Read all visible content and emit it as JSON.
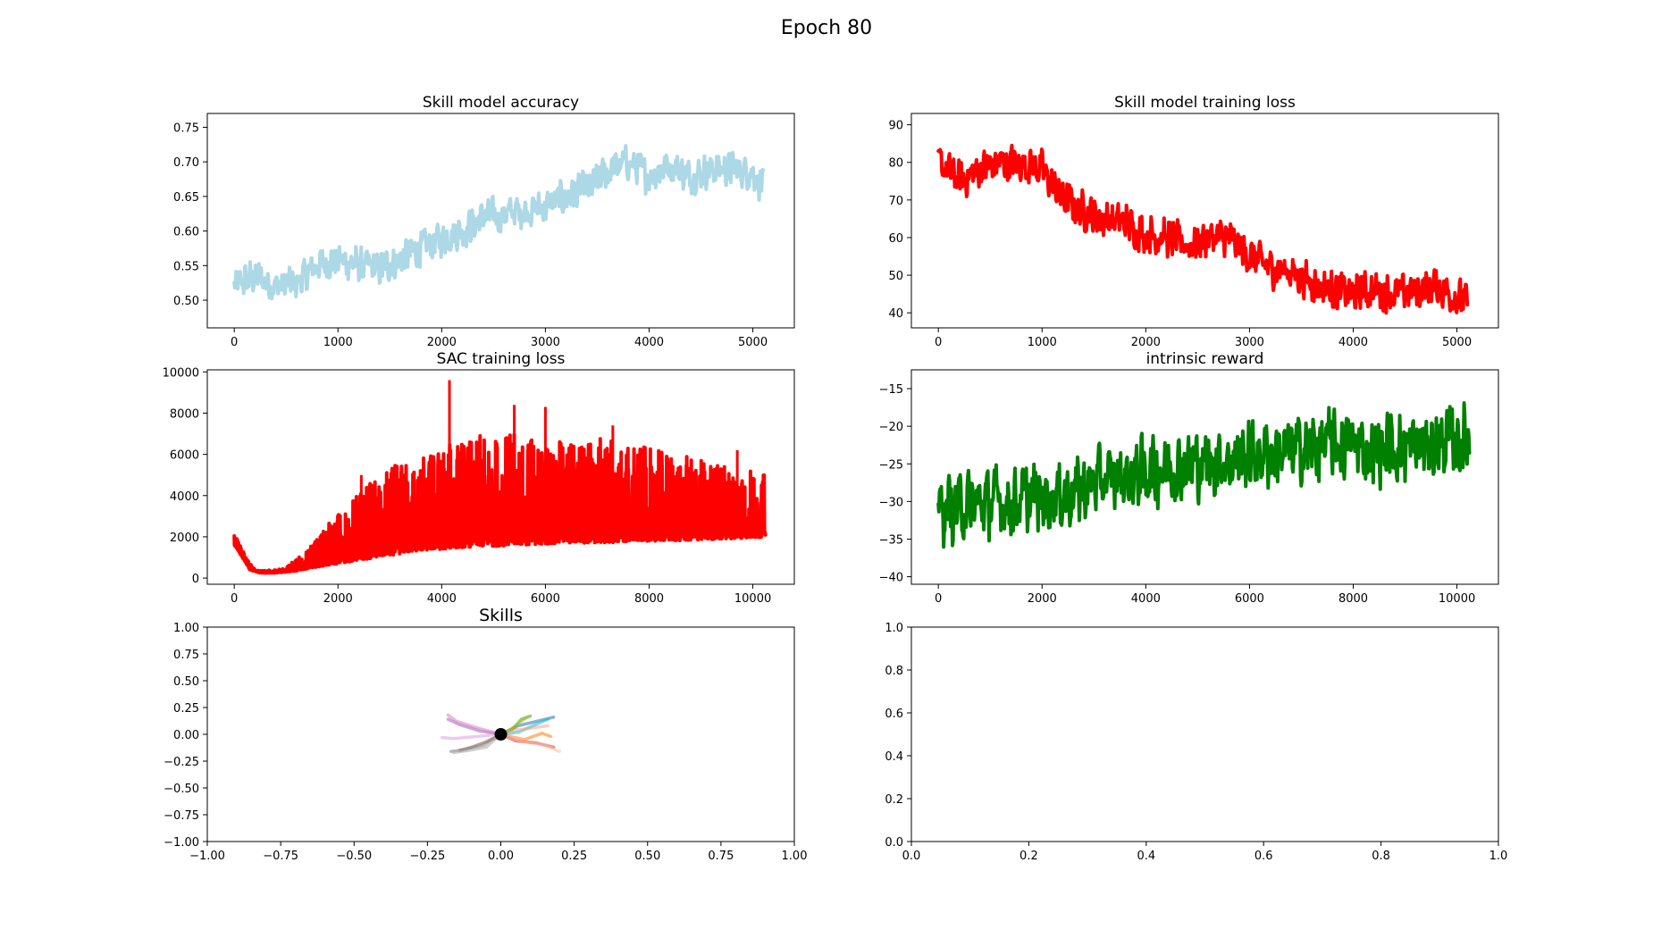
{
  "figure": {
    "suptitle": "Epoch 80"
  },
  "chart_data": [
    {
      "id": "acc",
      "type": "line",
      "title": "Skill model accuracy",
      "xlabel": "",
      "ylabel": "",
      "xlim": [
        -260,
        5400
      ],
      "ylim": [
        0.46,
        0.77
      ],
      "xticks": [
        0,
        1000,
        2000,
        3000,
        4000,
        5000
      ],
      "yticks": [
        0.5,
        0.55,
        0.6,
        0.65,
        0.7,
        0.75
      ],
      "xtick_labels": [
        "0",
        "1000",
        "2000",
        "3000",
        "4000",
        "5000"
      ],
      "ytick_labels": [
        "0.50",
        "0.55",
        "0.60",
        "0.65",
        "0.70",
        "0.75"
      ],
      "grid": false,
      "series": [
        {
          "color": "#add8e6",
          "x": [
            0,
            200,
            400,
            600,
            800,
            1000,
            1200,
            1400,
            1600,
            1800,
            2000,
            2200,
            2400,
            2600,
            2800,
            3000,
            3200,
            3400,
            3600,
            3800,
            4000,
            4200,
            4400,
            4600,
            4800,
            5000,
            5100
          ],
          "y": [
            0.52,
            0.535,
            0.52,
            0.525,
            0.55,
            0.56,
            0.55,
            0.545,
            0.56,
            0.575,
            0.59,
            0.6,
            0.62,
            0.625,
            0.63,
            0.635,
            0.65,
            0.66,
            0.685,
            0.7,
            0.68,
            0.695,
            0.68,
            0.69,
            0.69,
            0.685,
            0.665
          ],
          "noise": 0.06
        }
      ]
    },
    {
      "id": "loss",
      "type": "line",
      "title": "Skill model training loss",
      "xlabel": "",
      "ylabel": "",
      "xlim": [
        -260,
        5400
      ],
      "ylim": [
        36,
        93
      ],
      "xticks": [
        0,
        1000,
        2000,
        3000,
        4000,
        5000
      ],
      "yticks": [
        40,
        50,
        60,
        70,
        80,
        90
      ],
      "xtick_labels": [
        "0",
        "1000",
        "2000",
        "3000",
        "4000",
        "5000"
      ],
      "ytick_labels": [
        "40",
        "50",
        "60",
        "70",
        "80",
        "90"
      ],
      "grid": false,
      "series": [
        {
          "color": "#ff0000",
          "x": [
            0,
            200,
            400,
            600,
            800,
            1000,
            1200,
            1400,
            1600,
            1800,
            2000,
            2200,
            2400,
            2600,
            2800,
            3000,
            3200,
            3400,
            3600,
            3800,
            4000,
            4200,
            4400,
            4600,
            4800,
            5000,
            5100
          ],
          "y": [
            80,
            75,
            78,
            80,
            80,
            78,
            70,
            67,
            65,
            64,
            61,
            60,
            58,
            60,
            60,
            55,
            52,
            51,
            48,
            46,
            45,
            46,
            45,
            46,
            47,
            44,
            43
          ],
          "noise": 12
        }
      ]
    },
    {
      "id": "sac",
      "type": "line",
      "title": "SAC training loss",
      "xlabel": "",
      "ylabel": "",
      "xlim": [
        -520,
        10800
      ],
      "ylim": [
        -300,
        10100
      ],
      "xticks": [
        0,
        2000,
        4000,
        6000,
        8000,
        10000
      ],
      "yticks": [
        0,
        2000,
        4000,
        6000,
        8000,
        10000
      ],
      "xtick_labels": [
        "0",
        "2000",
        "4000",
        "6000",
        "8000",
        "10000"
      ],
      "ytick_labels": [
        "0",
        "2000",
        "4000",
        "6000",
        "8000",
        "10000"
      ],
      "grid": false,
      "series": [
        {
          "color": "#ff0000",
          "x": [
            0,
            100,
            300,
            500,
            800,
            1000,
            1200,
            1500,
            2000,
            2500,
            3000,
            3500,
            4000,
            4500,
            5000,
            5500,
            6000,
            6500,
            7000,
            7500,
            8000,
            8500,
            9000,
            9500,
            10000,
            10240
          ],
          "lower": [
            1600,
            1200,
            400,
            250,
            250,
            300,
            350,
            500,
            700,
            900,
            1100,
            1300,
            1400,
            1500,
            1550,
            1600,
            1650,
            1700,
            1700,
            1750,
            1800,
            1800,
            1850,
            1900,
            1950,
            2000
          ],
          "upper": [
            2100,
            1800,
            700,
            350,
            400,
            600,
            900,
            1600,
            3200,
            4400,
            5400,
            5800,
            6400,
            6800,
            7000,
            7000,
            6700,
            6700,
            6800,
            6600,
            6300,
            6000,
            5800,
            5500,
            5300,
            5000
          ],
          "spikes": [
            [
              4150,
              9600
            ],
            [
              5400,
              8400
            ],
            [
              6000,
              8300
            ],
            [
              7300,
              7400
            ],
            [
              2450,
              5000
            ],
            [
              9700,
              6200
            ]
          ]
        }
      ]
    },
    {
      "id": "rew",
      "type": "line",
      "title": "intrinsic reward",
      "xlabel": "",
      "ylabel": "",
      "xlim": [
        -520,
        10800
      ],
      "ylim": [
        -41,
        -12.5
      ],
      "xticks": [
        0,
        2000,
        4000,
        6000,
        8000,
        10000
      ],
      "yticks": [
        -40,
        -35,
        -30,
        -25,
        -20,
        -15
      ],
      "xtick_labels": [
        "0",
        "2000",
        "4000",
        "6000",
        "8000",
        "10000"
      ],
      "ytick_labels": [
        "−40",
        "−35",
        "−30",
        "−25",
        "−20",
        "−15"
      ],
      "grid": false,
      "series": [
        {
          "color": "#008000",
          "x": [
            0,
            500,
            1000,
            1500,
            2000,
            2500,
            3000,
            3500,
            4000,
            4500,
            5000,
            5500,
            6000,
            6500,
            7000,
            7500,
            8000,
            8500,
            9000,
            9500,
            10000,
            10240
          ],
          "y": [
            -31,
            -30.5,
            -30,
            -30,
            -29.5,
            -29,
            -27.5,
            -27,
            -26,
            -25.5,
            -25,
            -24.5,
            -24,
            -23.5,
            -23,
            -22.5,
            -22.5,
            -23,
            -23,
            -22.5,
            -22,
            -22
          ],
          "noise": 11
        }
      ]
    },
    {
      "id": "skills",
      "type": "line",
      "title": "Skills",
      "xlabel": "",
      "ylabel": "",
      "xlim": [
        -1,
        1
      ],
      "ylim": [
        -1,
        1
      ],
      "xticks": [
        -1,
        -0.75,
        -0.5,
        -0.25,
        0,
        0.25,
        0.5,
        0.75,
        1
      ],
      "yticks": [
        -1,
        -0.75,
        -0.5,
        -0.25,
        0,
        0.25,
        0.5,
        0.75,
        1
      ],
      "xtick_labels": [
        "−1.00",
        "−0.75",
        "−0.50",
        "−0.25",
        "0.00",
        "0.25",
        "0.50",
        "0.75",
        "1.00"
      ],
      "ytick_labels": [
        "−1.00",
        "−0.75",
        "−0.50",
        "−0.25",
        "0.00",
        "0.25",
        "0.50",
        "0.75",
        "1.00"
      ],
      "grid": false,
      "origin": [
        0,
        0
      ],
      "series": [
        {
          "color": "#1f77b4",
          "x": [
            0,
            0.06,
            0.12,
            0.18
          ],
          "y": [
            0,
            0.08,
            0.12,
            0.16
          ]
        },
        {
          "color": "#ff7f0e",
          "x": [
            0,
            0.08,
            0.14,
            0.17
          ],
          "y": [
            0,
            -0.05,
            0.01,
            -0.02
          ]
        },
        {
          "color": "#2ca02c",
          "x": [
            0,
            0.04,
            0.07,
            0.1
          ],
          "y": [
            0,
            0.05,
            0.14,
            0.17
          ]
        },
        {
          "color": "#d62728",
          "x": [
            0,
            0.05,
            0.12,
            0.18
          ],
          "y": [
            0,
            -0.06,
            -0.08,
            -0.12
          ]
        },
        {
          "color": "#9467bd",
          "x": [
            0,
            -0.07,
            -0.14,
            -0.18
          ],
          "y": [
            0,
            0.03,
            0.09,
            0.14
          ]
        },
        {
          "color": "#8c564b",
          "x": [
            0,
            -0.05,
            -0.1,
            -0.14
          ],
          "y": [
            0,
            -0.07,
            -0.12,
            -0.15
          ]
        },
        {
          "color": "#e377c2",
          "x": [
            0,
            -0.08,
            -0.15,
            -0.18
          ],
          "y": [
            0,
            0.06,
            0.12,
            0.18
          ]
        },
        {
          "color": "#7f7f7f",
          "x": [
            0,
            -0.06,
            -0.12,
            -0.17
          ],
          "y": [
            0,
            -0.1,
            -0.14,
            -0.16
          ]
        },
        {
          "color": "#bcbd22",
          "x": [
            0,
            0.03,
            0.06,
            0.09
          ],
          "y": [
            0,
            0.04,
            0.1,
            0.16
          ]
        },
        {
          "color": "#17becf",
          "x": [
            0,
            0.06,
            0.11,
            0.16
          ],
          "y": [
            0,
            0.02,
            0.08,
            0.14
          ]
        },
        {
          "color": "#ffbb99",
          "x": [
            0,
            0.08,
            0.15,
            0.2
          ],
          "y": [
            0,
            -0.07,
            -0.1,
            -0.16
          ]
        },
        {
          "color": "#dda0dd",
          "x": [
            0,
            -0.08,
            -0.16,
            -0.2
          ],
          "y": [
            0,
            -0.02,
            -0.04,
            -0.03
          ]
        },
        {
          "color": "#aaaaaa",
          "x": [
            0,
            -0.05,
            -0.11,
            -0.16
          ],
          "y": [
            0,
            -0.12,
            -0.15,
            -0.17
          ]
        },
        {
          "color": "#ff9f80",
          "x": [
            0,
            0.05,
            0.11,
            0.16
          ],
          "y": [
            0,
            0.04,
            0.06,
            0.08
          ]
        }
      ]
    },
    {
      "id": "empty",
      "type": "line",
      "title": "",
      "xlabel": "",
      "ylabel": "",
      "xlim": [
        0,
        1
      ],
      "ylim": [
        0,
        1
      ],
      "xticks": [
        0,
        0.2,
        0.4,
        0.6,
        0.8,
        1
      ],
      "yticks": [
        0,
        0.2,
        0.4,
        0.6,
        0.8,
        1
      ],
      "xtick_labels": [
        "0.0",
        "0.2",
        "0.4",
        "0.6",
        "0.8",
        "1.0"
      ],
      "ytick_labels": [
        "0.0",
        "0.2",
        "0.4",
        "0.6",
        "0.8",
        "1.0"
      ],
      "grid": false,
      "series": []
    }
  ]
}
